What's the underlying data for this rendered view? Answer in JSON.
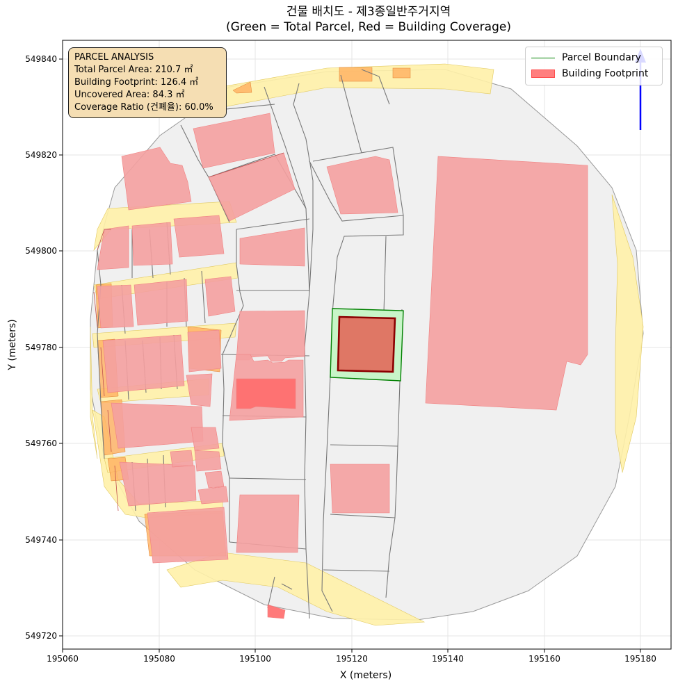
{
  "title": {
    "line1": "건물 배치도 - 제3종일반주거지역",
    "line2": "(Green = Total Parcel, Red = Building Coverage)"
  },
  "axes": {
    "xlabel": "X (meters)",
    "ylabel": "Y (meters)",
    "xticks": [
      "195060",
      "195080",
      "195100",
      "195120",
      "195140",
      "195160",
      "195180"
    ],
    "yticks": [
      "549720",
      "549740",
      "549760",
      "549780",
      "549800",
      "549820",
      "549840"
    ]
  },
  "info_box": {
    "heading": "PARCEL ANALYSIS",
    "total_parcel": "Total Parcel Area: 210.7 ㎡",
    "building_footprint": "Building Footprint: 126.4 ㎡",
    "uncovered": "Uncovered Area: 84.3 ㎡",
    "coverage": "Coverage Ratio (건폐율): 60.0%"
  },
  "legend": {
    "parcel": "Parcel Boundary",
    "building": "Building Footprint"
  },
  "colors": {
    "parcel_edge": "#008000",
    "parcel_fill": "#c8f5c8",
    "building_fill": "#e07060",
    "building_edge": "#8b0000",
    "context_building": "#f4a6a6",
    "road": "#fff1a8",
    "ground": "#f0f0f0",
    "north_arrow": "#0000ff"
  }
}
